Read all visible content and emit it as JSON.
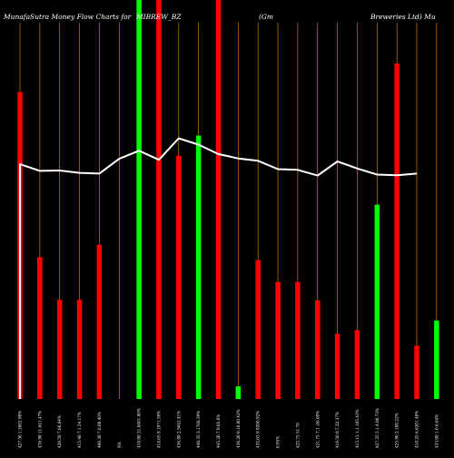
{
  "chart_data": {
    "type": "bar",
    "title_parts": [
      "MunafaSutra  Money Flow  Charts for",
      "MIBREW_BZ",
      "(Gm",
      "Breweries Ltd) Mu"
    ],
    "categories": [
      "427.50 1.2062.90%",
      "476.90 11.641.47%",
      "420.50 7.66.84%",
      "415.40 7.1.54.17%",
      "406.30 7.6.00.40%",
      "NA",
      "410.00 21.8401.80%",
      "418.65 9.1971.59%",
      "436.00 2.5642.41%",
      "448.35 3.1768.39%",
      "445.20 7.9.05.8%",
      "436.20 0.18.60.42%",
      "435.65 9.9200.92%",
      "0.95%",
      "425.75 51.78",
      "421.75 7.1 .86.09%",
      "416.50 0.7.22.37%",
      "415.15 1.1.105.43%",
      "427.35 5.1.4.00.73%",
      "425.90 2.100.22%",
      "410.25 6.6201.48%",
      "433.00 1.0.6.64%",
      "428.50 1.1.50%"
    ],
    "bar_values": [
      0.915,
      0.423,
      0.296,
      0.296,
      0.46,
      1.2,
      1.2,
      0.725,
      0.785,
      1.2,
      0.038,
      0.414,
      0.349,
      0.349,
      0.294,
      0.195,
      0.205,
      0.579,
      1.0,
      0.159,
      0.234
    ],
    "bar_colors": [
      "red",
      "red",
      "red",
      "red",
      "red",
      "green",
      "red",
      "red",
      "green",
      "red",
      "green",
      "red",
      "red",
      "red",
      "red",
      "red",
      "red",
      "green",
      "red",
      "red",
      "green"
    ],
    "bar_slots": [
      0,
      1,
      2,
      3,
      4,
      6,
      7,
      8,
      9,
      10,
      11,
      12,
      13,
      14,
      15,
      16,
      17,
      18,
      19,
      20,
      21
    ],
    "line_values": [
      0.7,
      0.68,
      0.681,
      0.674,
      0.672,
      0.716,
      0.74,
      0.713,
      0.777,
      0.758,
      0.73,
      0.717,
      0.71,
      0.685,
      0.683,
      0.666,
      0.708,
      0.687,
      0.669,
      0.667,
      0.672
    ],
    "line_slots": [
      0,
      1,
      2,
      3,
      4,
      5,
      6,
      7,
      8,
      9,
      10,
      11,
      12,
      13,
      14,
      15,
      16,
      17,
      18,
      19,
      20
    ],
    "colors": {
      "background": "#000000",
      "up": "#00ff00",
      "down": "#ff0000",
      "line": "#ffffff",
      "grid": "#ff8c00",
      "label": "#ffffff"
    }
  }
}
